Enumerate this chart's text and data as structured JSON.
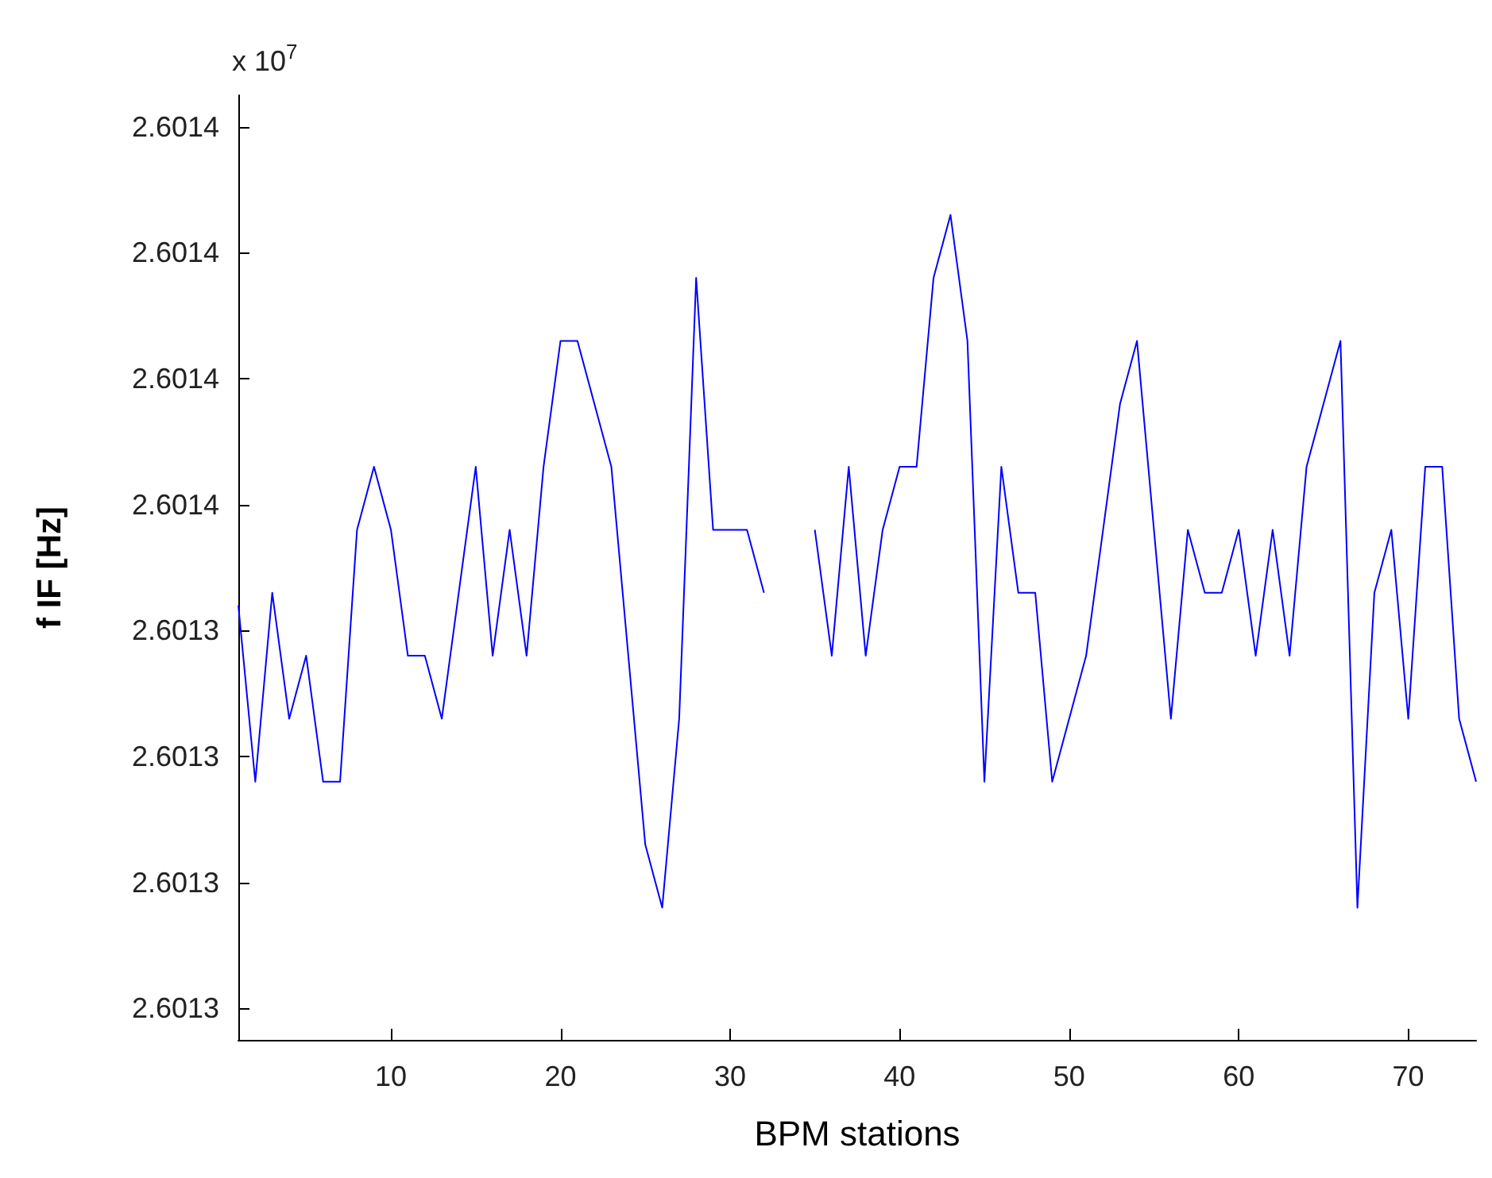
{
  "chart_data": {
    "type": "line",
    "xlabel": "BPM stations",
    "ylabel": "f IF [Hz]",
    "annotations": [
      "x 10$^{7}$"
    ],
    "x": [
      1,
      2,
      3,
      4,
      5,
      6,
      7,
      8,
      9,
      10,
      11,
      12,
      13,
      14,
      15,
      16,
      17,
      18,
      19,
      20,
      21,
      22,
      23,
      24,
      25,
      26,
      27,
      28,
      29,
      30,
      31,
      32,
      33,
      34,
      35,
      36,
      37,
      38,
      39,
      40,
      41,
      42,
      43,
      44,
      45,
      46,
      47,
      48,
      49,
      50,
      51,
      52,
      53,
      54,
      55,
      56,
      57,
      58,
      59,
      60,
      61,
      62,
      63,
      64,
      65,
      66,
      67,
      68,
      69,
      70,
      71,
      72,
      73,
      74
    ],
    "series": [
      {
        "color": "#0000ff",
        "values": [
          2.601347,
          2.601333,
          2.601348,
          2.601338,
          2.601343,
          2.601333,
          2.601333,
          2.601353,
          2.601358,
          2.601353,
          2.601343,
          2.601343,
          2.601338,
          2.601348,
          2.601358,
          2.601343,
          2.601353,
          2.601343,
          2.601358,
          2.601368,
          2.601368,
          2.601363,
          2.601358,
          2.601343,
          2.601328,
          2.601323,
          2.601338,
          2.601373,
          2.601353,
          2.601353,
          2.601353,
          2.601348,
          null,
          null,
          2.601353,
          2.601343,
          2.601358,
          2.601343,
          2.601353,
          2.601358,
          2.601358,
          2.601373,
          2.601378,
          2.601368,
          2.601333,
          2.601358,
          2.601348,
          2.601348,
          2.601333,
          2.601338,
          2.601343,
          2.601353,
          2.601363,
          2.601368,
          2.601353,
          2.601338,
          2.601353,
          2.601348,
          2.601348,
          2.601353,
          2.601343,
          2.601353,
          2.601343,
          2.601358,
          2.601363,
          2.601368,
          2.601323,
          2.601348,
          2.601353,
          2.601338,
          2.601358,
          2.601358,
          2.601338,
          2.601333
        ]
      }
    ],
    "xlim": [
      1,
      74
    ],
    "xticks": [
      10,
      20,
      30,
      40,
      50,
      60,
      70
    ],
    "ylim": [
      2.6013125,
      2.6013875
    ],
    "yticks": [
      {
        "value": 2.601315,
        "label": "2.6013"
      },
      {
        "value": 2.601325,
        "label": "2.6013"
      },
      {
        "value": 2.601335,
        "label": "2.6013"
      },
      {
        "value": 2.601345,
        "label": "2.6013"
      },
      {
        "value": 2.601355,
        "label": "2.6014"
      },
      {
        "value": 2.601365,
        "label": "2.6014"
      },
      {
        "value": 2.601375,
        "label": "2.6014"
      },
      {
        "value": 2.601385,
        "label": "2.6014"
      }
    ],
    "grid": false,
    "marker": "none",
    "line_style": "solid"
  }
}
